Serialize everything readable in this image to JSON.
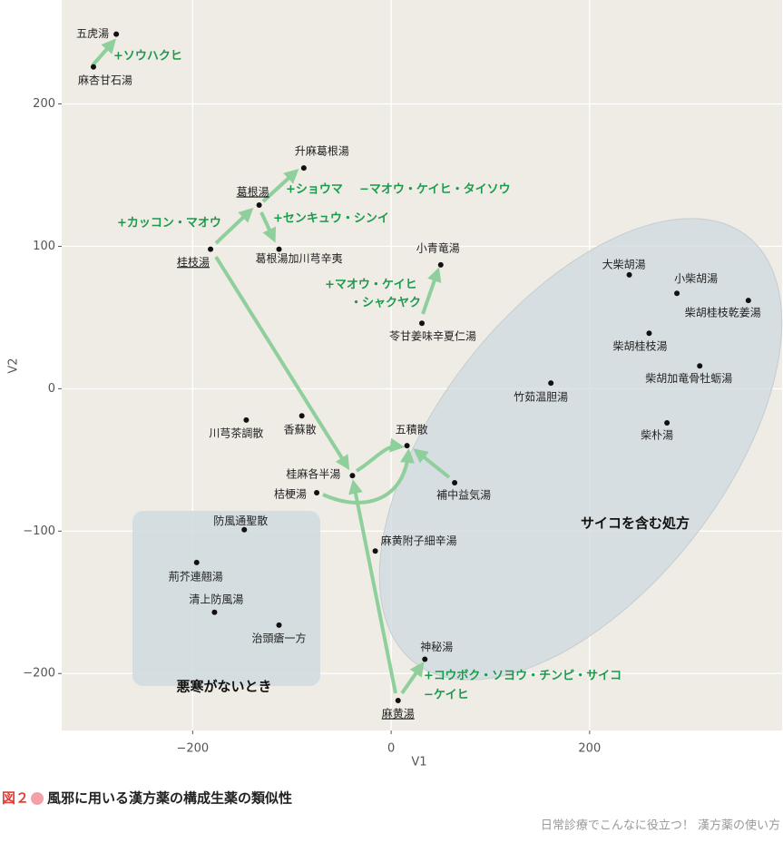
{
  "chart_data": {
    "type": "scatter",
    "x_label": "V1",
    "y_label": "V2",
    "xlim": [
      -332,
      394
    ],
    "ylim": [
      -240,
      273
    ],
    "xticks": [
      {
        "value": -200,
        "label": "−200"
      },
      0,
      200
    ],
    "yticks": [
      {
        "value": -200,
        "label": "−200"
      },
      {
        "value": -100,
        "label": "−100"
      },
      0,
      100,
      200
    ],
    "grid": true,
    "color": "#111111",
    "point_labels": [
      "五虎湯",
      "麻杏甘石湯",
      "升麻葛根湯",
      "葛根湯",
      "桂枝湯",
      "葛根湯加川芎辛夷",
      "小青竜湯",
      "苓甘姜味辛夏仁湯",
      "大柴胡湯",
      "小柴胡湯",
      "柴胡桂枝乾姜湯",
      "柴胡桂枝湯",
      "柴胡加竜骨牡蛎湯",
      "竹茹温胆湯",
      "柴朴湯",
      "川芎茶調散",
      "香蘇散",
      "五積散",
      "桂麻各半湯",
      "補中益気湯",
      "桔梗湯",
      "防風通聖散",
      "麻黄附子細辛湯",
      "荊芥連翹湯",
      "清上防風湯",
      "治頭瘡一方",
      "神秘湯",
      "麻黄湯"
    ],
    "x": [
      -277,
      -300,
      -88,
      -133,
      -182,
      -113,
      50,
      31,
      240,
      288,
      360,
      260,
      311,
      161,
      278,
      -146,
      -90,
      16,
      -39,
      64,
      -75,
      -148,
      -16,
      -196,
      -178,
      -113,
      34,
      7
    ],
    "values": [
      249,
      226,
      155,
      129,
      98,
      98,
      87,
      46,
      80,
      67,
      62,
      39,
      16,
      4,
      -24,
      -22,
      -19,
      -40,
      -61,
      -66,
      -73,
      -99,
      -114,
      -122,
      -157,
      -166,
      -190,
      -219
    ],
    "annotations": [
      "+ソウハクヒ",
      "+ショウマ",
      "−マオウ・ケイヒ・タイソウ",
      "+センキュウ・シンイ",
      "+カッコン・マオウ",
      "+マオウ・ケイヒ",
      "・シャクヤク",
      "+コウボク・ソヨウ・チンピ・サイコ",
      "−ケイヒ"
    ],
    "region_labels": [
      "サイコを含む処方",
      "悪寒がないとき"
    ]
  },
  "caption": {
    "figure": "図２",
    "text": "風邪に用いる漢方薬の構成生薬の類似性",
    "source": "日常診療でこんなに役立つ！ 漢方薬の使い方"
  }
}
